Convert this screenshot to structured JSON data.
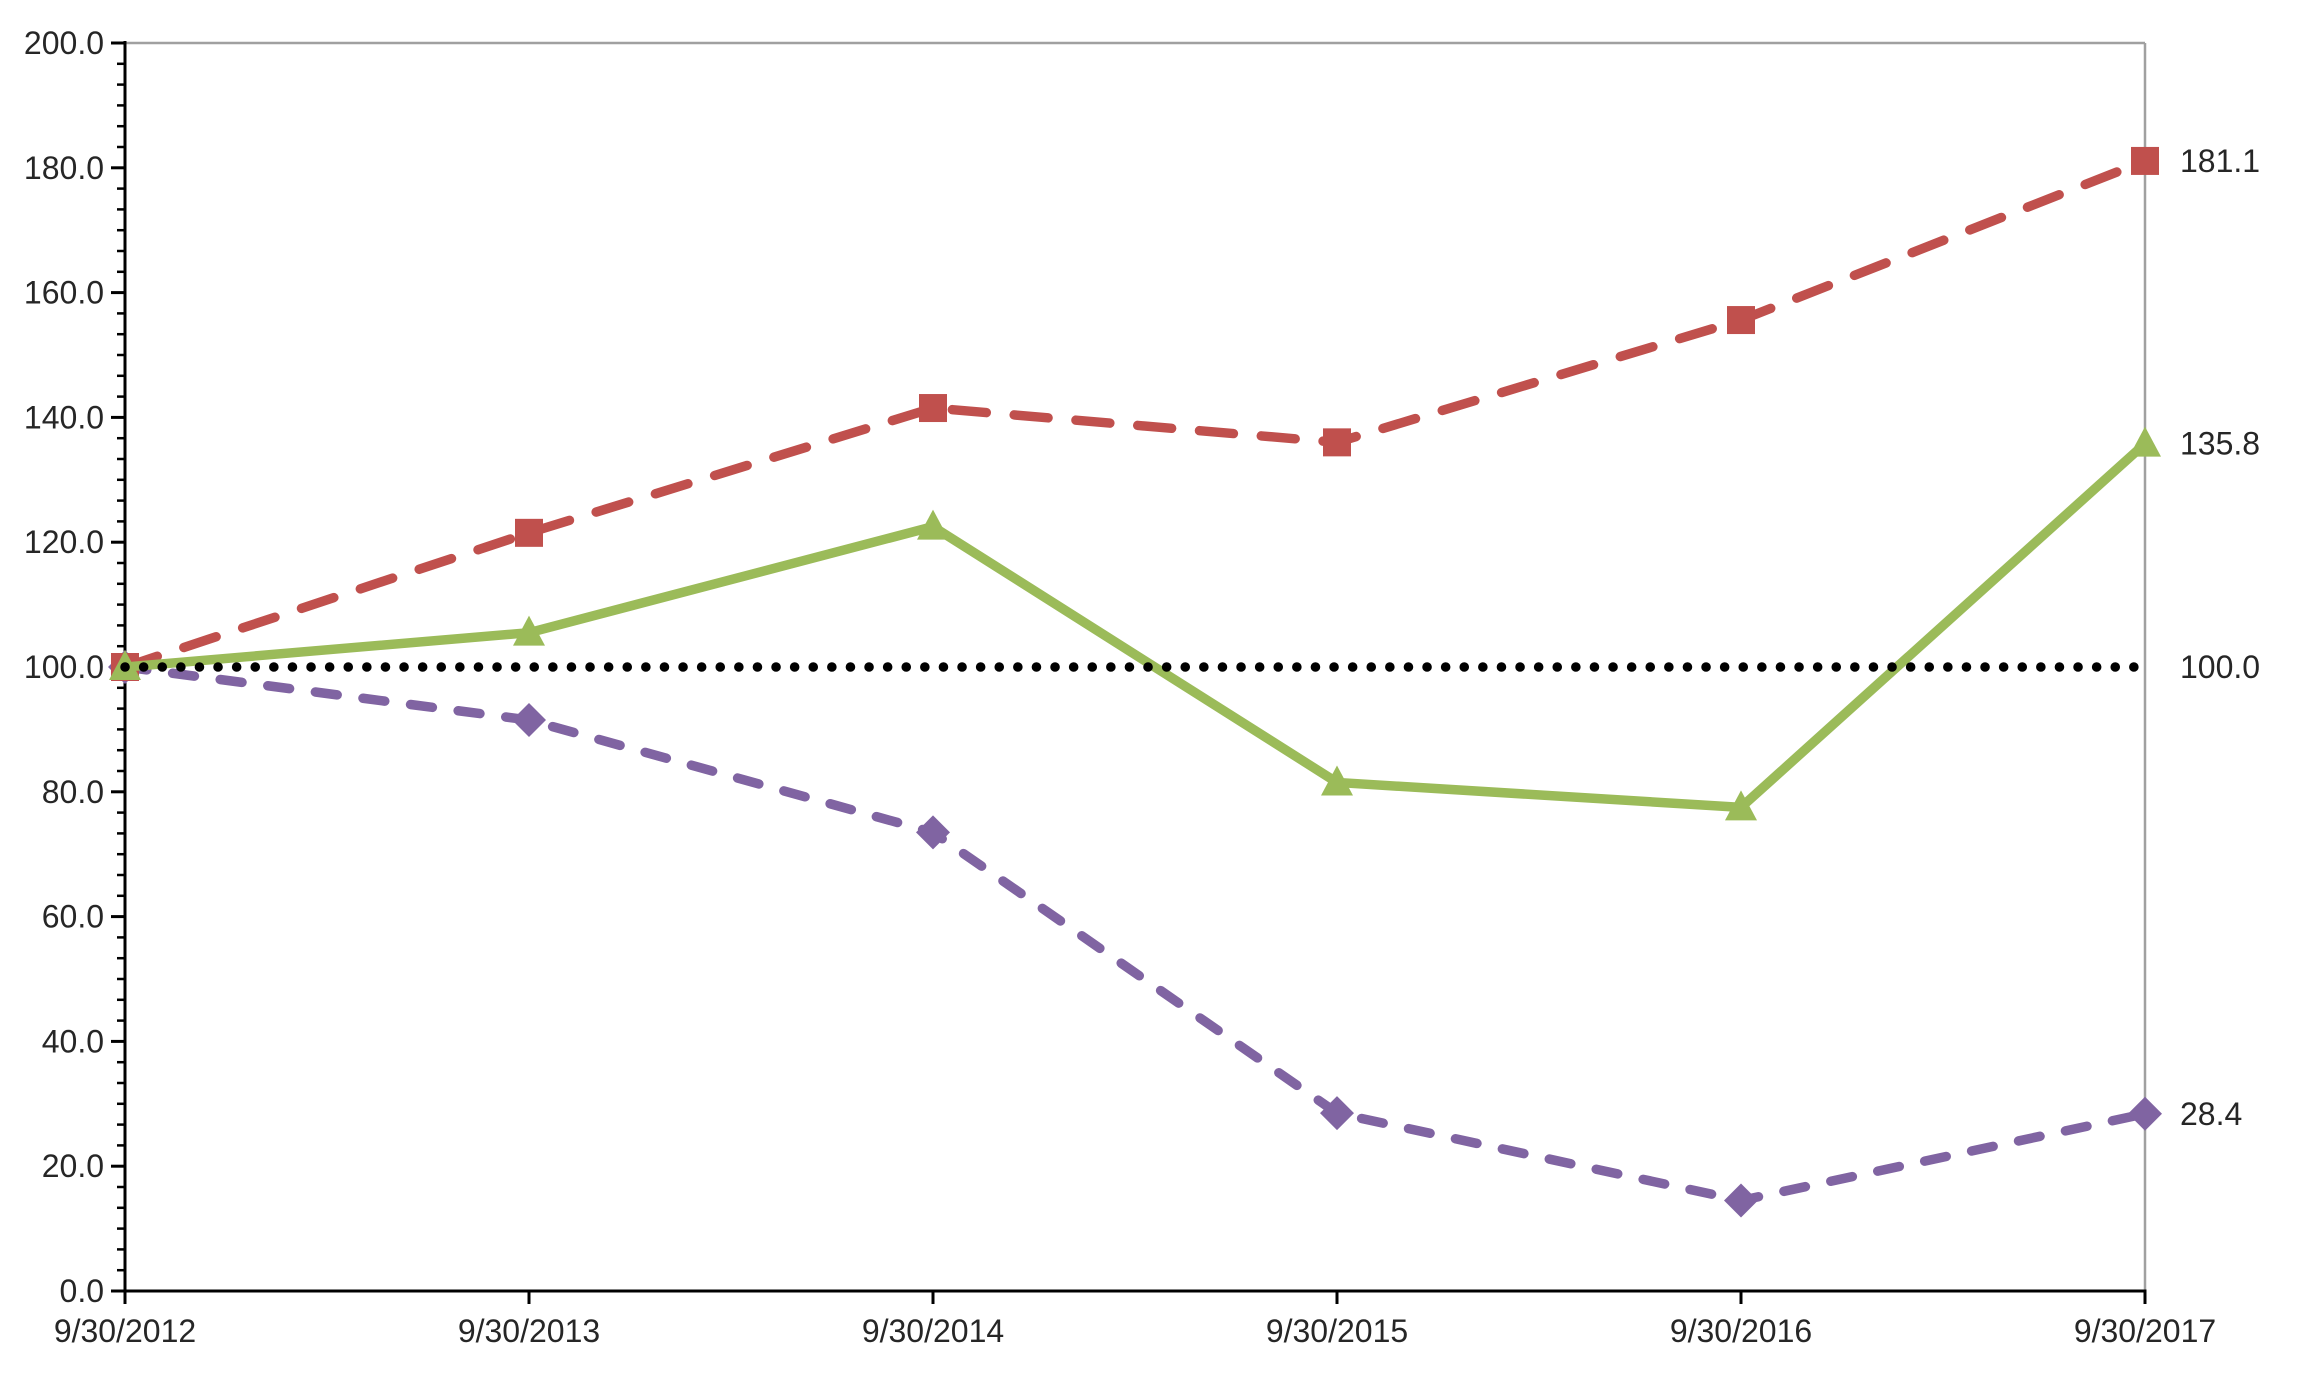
{
  "chart_data": {
    "type": "line",
    "title": "",
    "xlabel": "",
    "ylabel": "",
    "x_categories": [
      "9/30/2012",
      "9/30/2013",
      "9/30/2014",
      "9/30/2015",
      "9/30/2016",
      "9/30/2017"
    ],
    "ylim": [
      0,
      200
    ],
    "y_tick_step": 20,
    "y_tick_labels": [
      "200.0",
      "180.0",
      "160.0",
      "140.0",
      "120.0",
      "100.0",
      "80.0",
      "60.0",
      "40.0",
      "20.0",
      "0.0"
    ],
    "minor_ticks_per_major": 6,
    "grid": false,
    "legend": "none",
    "series": [
      {
        "name": "red-dashed-squares",
        "color": "#C0504D",
        "line_style": "dashed-long",
        "marker": "square",
        "values": [
          100.0,
          121.5,
          141.5,
          136.0,
          155.6,
          181.1
        ],
        "end_label": "181.1"
      },
      {
        "name": "green-solid-triangles",
        "color": "#9BBB59",
        "line_style": "solid",
        "marker": "triangle",
        "values": [
          100.0,
          105.5,
          122.5,
          81.5,
          77.5,
          135.8
        ],
        "end_label": "135.8"
      },
      {
        "name": "purple-dashed-diamonds",
        "color": "#8064A2",
        "line_style": "dashed-short",
        "marker": "diamond",
        "values": [
          100.0,
          91.5,
          73.5,
          28.5,
          14.5,
          28.4
        ],
        "end_label": "28.4"
      },
      {
        "name": "baseline-dotted-100",
        "color": "#000000",
        "line_style": "dotted",
        "marker": "none",
        "values": [
          100.0,
          100.0,
          100.0,
          100.0,
          100.0,
          100.0
        ],
        "end_label": "100.0"
      }
    ],
    "colors": {
      "axis": "#000000",
      "plot_border": "#A0A0A0",
      "text": "#262626"
    }
  }
}
